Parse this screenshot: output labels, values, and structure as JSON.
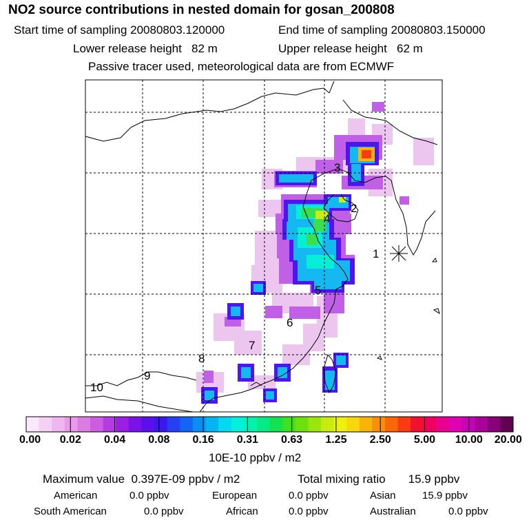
{
  "header": {
    "title": "NO2 source contributions in nested domain for gosan_200808",
    "start_label": "Start time of sampling",
    "start_value": "20080803.120000",
    "end_label": "End time of sampling",
    "end_value": "20080803.150000",
    "lower_label": "Lower release height",
    "lower_value": "82 m",
    "upper_label": "Upper release height",
    "upper_value": "62 m",
    "note": "Passive tracer used, meteorological data are from ECMWF"
  },
  "map": {
    "receptor_symbol": "asterisk",
    "region_labels": [
      {
        "id": "1",
        "text": "1"
      },
      {
        "id": "2",
        "text": "2"
      },
      {
        "id": "3",
        "text": "3"
      },
      {
        "id": "4",
        "text": "4"
      },
      {
        "id": "5",
        "text": "5"
      },
      {
        "id": "6",
        "text": "6"
      },
      {
        "id": "7",
        "text": "7"
      },
      {
        "id": "8",
        "text": "8"
      },
      {
        "id": "9",
        "text": "9"
      },
      {
        "id": "10",
        "text": "10"
      }
    ]
  },
  "colorbar": {
    "colors": [
      "#fbe9fb",
      "#f5d0f5",
      "#efb6ef",
      "#e79be9",
      "#db7ce3",
      "#cc5ce0",
      "#b43be0",
      "#9a1fe2",
      "#7a14e6",
      "#5b10ea",
      "#3d18ee",
      "#2440f0",
      "#1266f2",
      "#0a8ef4",
      "#06b4f2",
      "#06d8ee",
      "#04f0dc",
      "#06f0b0",
      "#08ea84",
      "#14e050",
      "#3ee020",
      "#6ee010",
      "#9ae410",
      "#c6ec10",
      "#eef010",
      "#f8d80c",
      "#f8b408",
      "#f89008",
      "#f86808",
      "#f83c10",
      "#f01030",
      "#f00060",
      "#e80090",
      "#e000b4",
      "#c800b8",
      "#a80098",
      "#880078",
      "#600050"
    ],
    "ticks": [
      "0.00",
      "0.02",
      "0.04",
      "0.08",
      "0.16",
      "0.31",
      "0.63",
      "1.25",
      "2.50",
      "5.00",
      "10.00",
      "20.00"
    ],
    "unit_label": "10E-10 ppbv / m2"
  },
  "summary": {
    "max_label": "Maximum value",
    "max_value": "0.397E-09 ppbv / m2",
    "total_label": "Total mixing ratio",
    "total_value": "15.9 ppbv",
    "american_label": "American",
    "american_value": "0.0 ppbv",
    "european_label": "European",
    "european_value": "0.0 ppbv",
    "asian_label": "Asian",
    "asian_value": "15.9 ppbv",
    "south_american_label": "South American",
    "south_american_value": "0.0 ppbv",
    "african_label": "African",
    "african_value": "0.0 ppbv",
    "australian_label": "Australian",
    "australian_value": "0.0 ppbv"
  }
}
